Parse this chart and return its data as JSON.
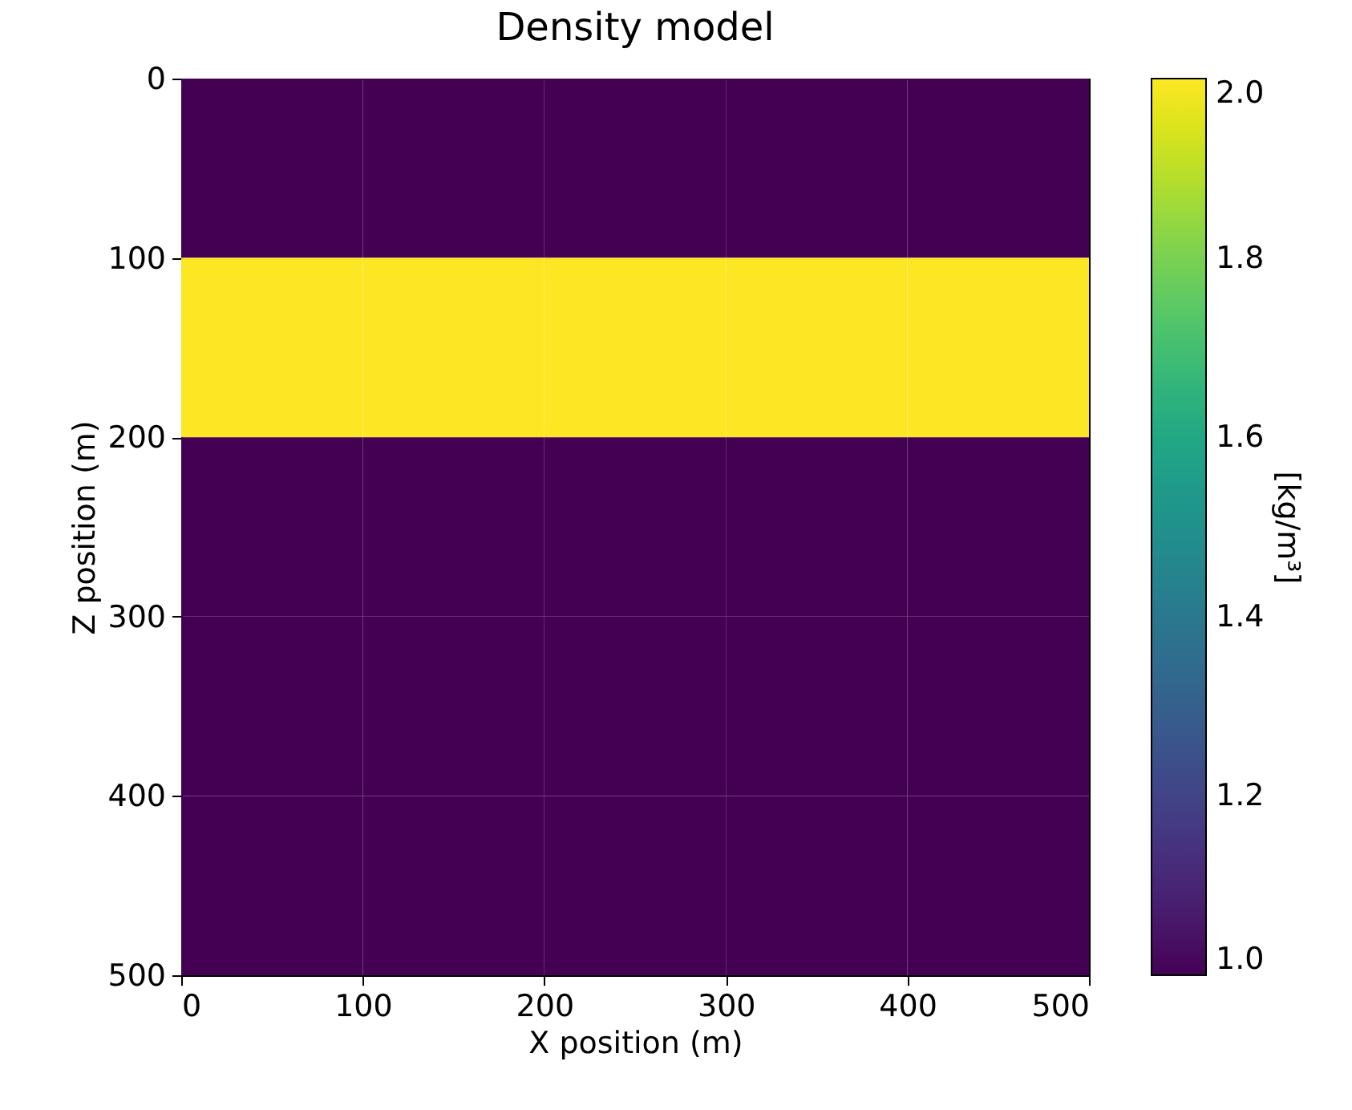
{
  "chart_data": {
    "type": "heatmap",
    "title": "Density model",
    "xlabel": "X position (m)",
    "ylabel": "Z position (m)",
    "clabel": "[kg/m³]",
    "x": [
      50,
      150,
      250,
      350,
      450
    ],
    "cells": [
      [
        1.0,
        1.0,
        1.0,
        1.0,
        1.0
      ],
      [
        2.0,
        2.0,
        2.0,
        2.0,
        2.0
      ],
      [
        1.0,
        1.0,
        1.0,
        1.0,
        1.0
      ],
      [
        1.0,
        1.0,
        1.0,
        1.0,
        1.0
      ],
      [
        1.0,
        1.0,
        1.0,
        1.0,
        1.0
      ]
    ],
    "xlim": [
      0,
      500
    ],
    "ylim": [
      500,
      0
    ],
    "xticks": [
      0,
      100,
      200,
      300,
      400,
      500
    ],
    "yticks": [
      0,
      100,
      200,
      300,
      400,
      500
    ],
    "clim": [
      1.0,
      2.0
    ],
    "cticks": [
      {
        "value": 1.0,
        "label": "1.0"
      },
      {
        "value": 1.2,
        "label": "1.2"
      },
      {
        "value": 1.4,
        "label": "1.4"
      },
      {
        "value": 1.6,
        "label": "1.6"
      },
      {
        "value": 1.8,
        "label": "1.8"
      },
      {
        "value": 2.0,
        "label": "2.0"
      }
    ]
  }
}
